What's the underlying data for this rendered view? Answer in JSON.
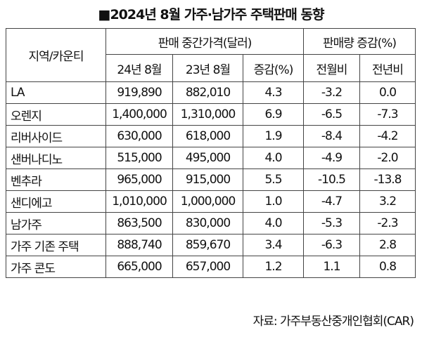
{
  "title": "■2024년 8월 가주·남가주 주택판매 동향",
  "table": {
    "region_header": "지역/카운티",
    "price_group_header": "판매 중간가격(달러)",
    "volume_group_header": "판매량 증감(%)",
    "sub_headers": [
      "24년 8월",
      "23년 8월",
      "증감(%)",
      "전월비",
      "전년비"
    ],
    "rows": [
      {
        "region": "LA",
        "price_2024_08": "919,890",
        "price_2023_08": "882,010",
        "price_change": "4.3",
        "mom": "-3.2",
        "yoy": "0.0"
      },
      {
        "region": "오렌지",
        "price_2024_08": "1,400,000",
        "price_2023_08": "1,310,000",
        "price_change": "6.9",
        "mom": "-6.5",
        "yoy": "-7.3"
      },
      {
        "region": "리버사이드",
        "price_2024_08": "630,000",
        "price_2023_08": "618,000",
        "price_change": "1.9",
        "mom": "-8.4",
        "yoy": "-4.2"
      },
      {
        "region": "샌버나디노",
        "price_2024_08": "515,000",
        "price_2023_08": "495,000",
        "price_change": "4.0",
        "mom": "-4.9",
        "yoy": "-2.0"
      },
      {
        "region": "벤추라",
        "price_2024_08": "965,000",
        "price_2023_08": "915,000",
        "price_change": "5.5",
        "mom": "-10.5",
        "yoy": "-13.8"
      },
      {
        "region": "샌디에고",
        "price_2024_08": "1,010,000",
        "price_2023_08": "1,000,000",
        "price_change": "1.0",
        "mom": "-4.7",
        "yoy": "3.2"
      },
      {
        "region": "남가주",
        "price_2024_08": "863,500",
        "price_2023_08": "830,000",
        "price_change": "4.0",
        "mom": "-5.3",
        "yoy": "-2.3"
      },
      {
        "region": "가주 기존 주택",
        "price_2024_08": "888,740",
        "price_2023_08": "859,670",
        "price_change": "3.4",
        "mom": "-6.3",
        "yoy": "2.8"
      },
      {
        "region": "가주 콘도",
        "price_2024_08": "665,000",
        "price_2023_08": "657,000",
        "price_change": "1.2",
        "mom": "1.1",
        "yoy": "0.8"
      }
    ]
  },
  "source": "자료: 가주부동산중개인협회(CAR)"
}
